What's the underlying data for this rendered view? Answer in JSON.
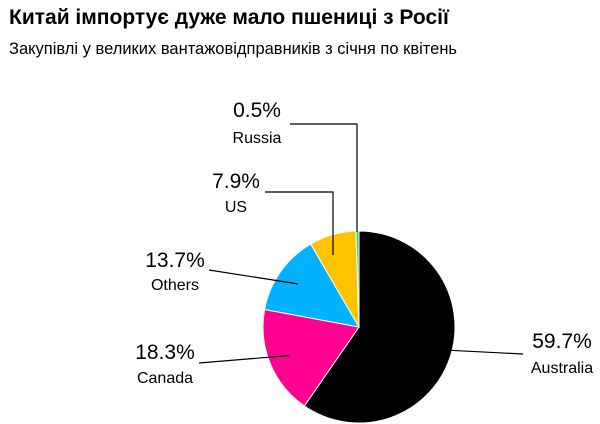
{
  "title": "Китай імпортує дуже мало пшениці з Росії",
  "subtitle": "Закупівлі у великих вантажовідправників з січня по квітень",
  "chart_data": {
    "type": "pie",
    "title": "Китай імпортує дуже мало пшениці з Росії",
    "subtitle": "Закупівлі у великих вантажовідправників з січня по квітень",
    "slices": [
      {
        "label": "Australia",
        "value": 59.7,
        "display": "59.7%",
        "color": "#000000"
      },
      {
        "label": "Canada",
        "value": 18.3,
        "display": "18.3%",
        "color": "#ff0090"
      },
      {
        "label": "Others",
        "value": 13.7,
        "display": "13.7%",
        "color": "#00b2ff"
      },
      {
        "label": "US",
        "value": 7.9,
        "display": "7.9%",
        "color": "#ffc400"
      },
      {
        "label": "Russia",
        "value": 0.5,
        "display": "0.5%",
        "color": "#2bd57a"
      }
    ],
    "direction": "clockwise from top",
    "legend": "none (direct labels with leader lines)"
  }
}
